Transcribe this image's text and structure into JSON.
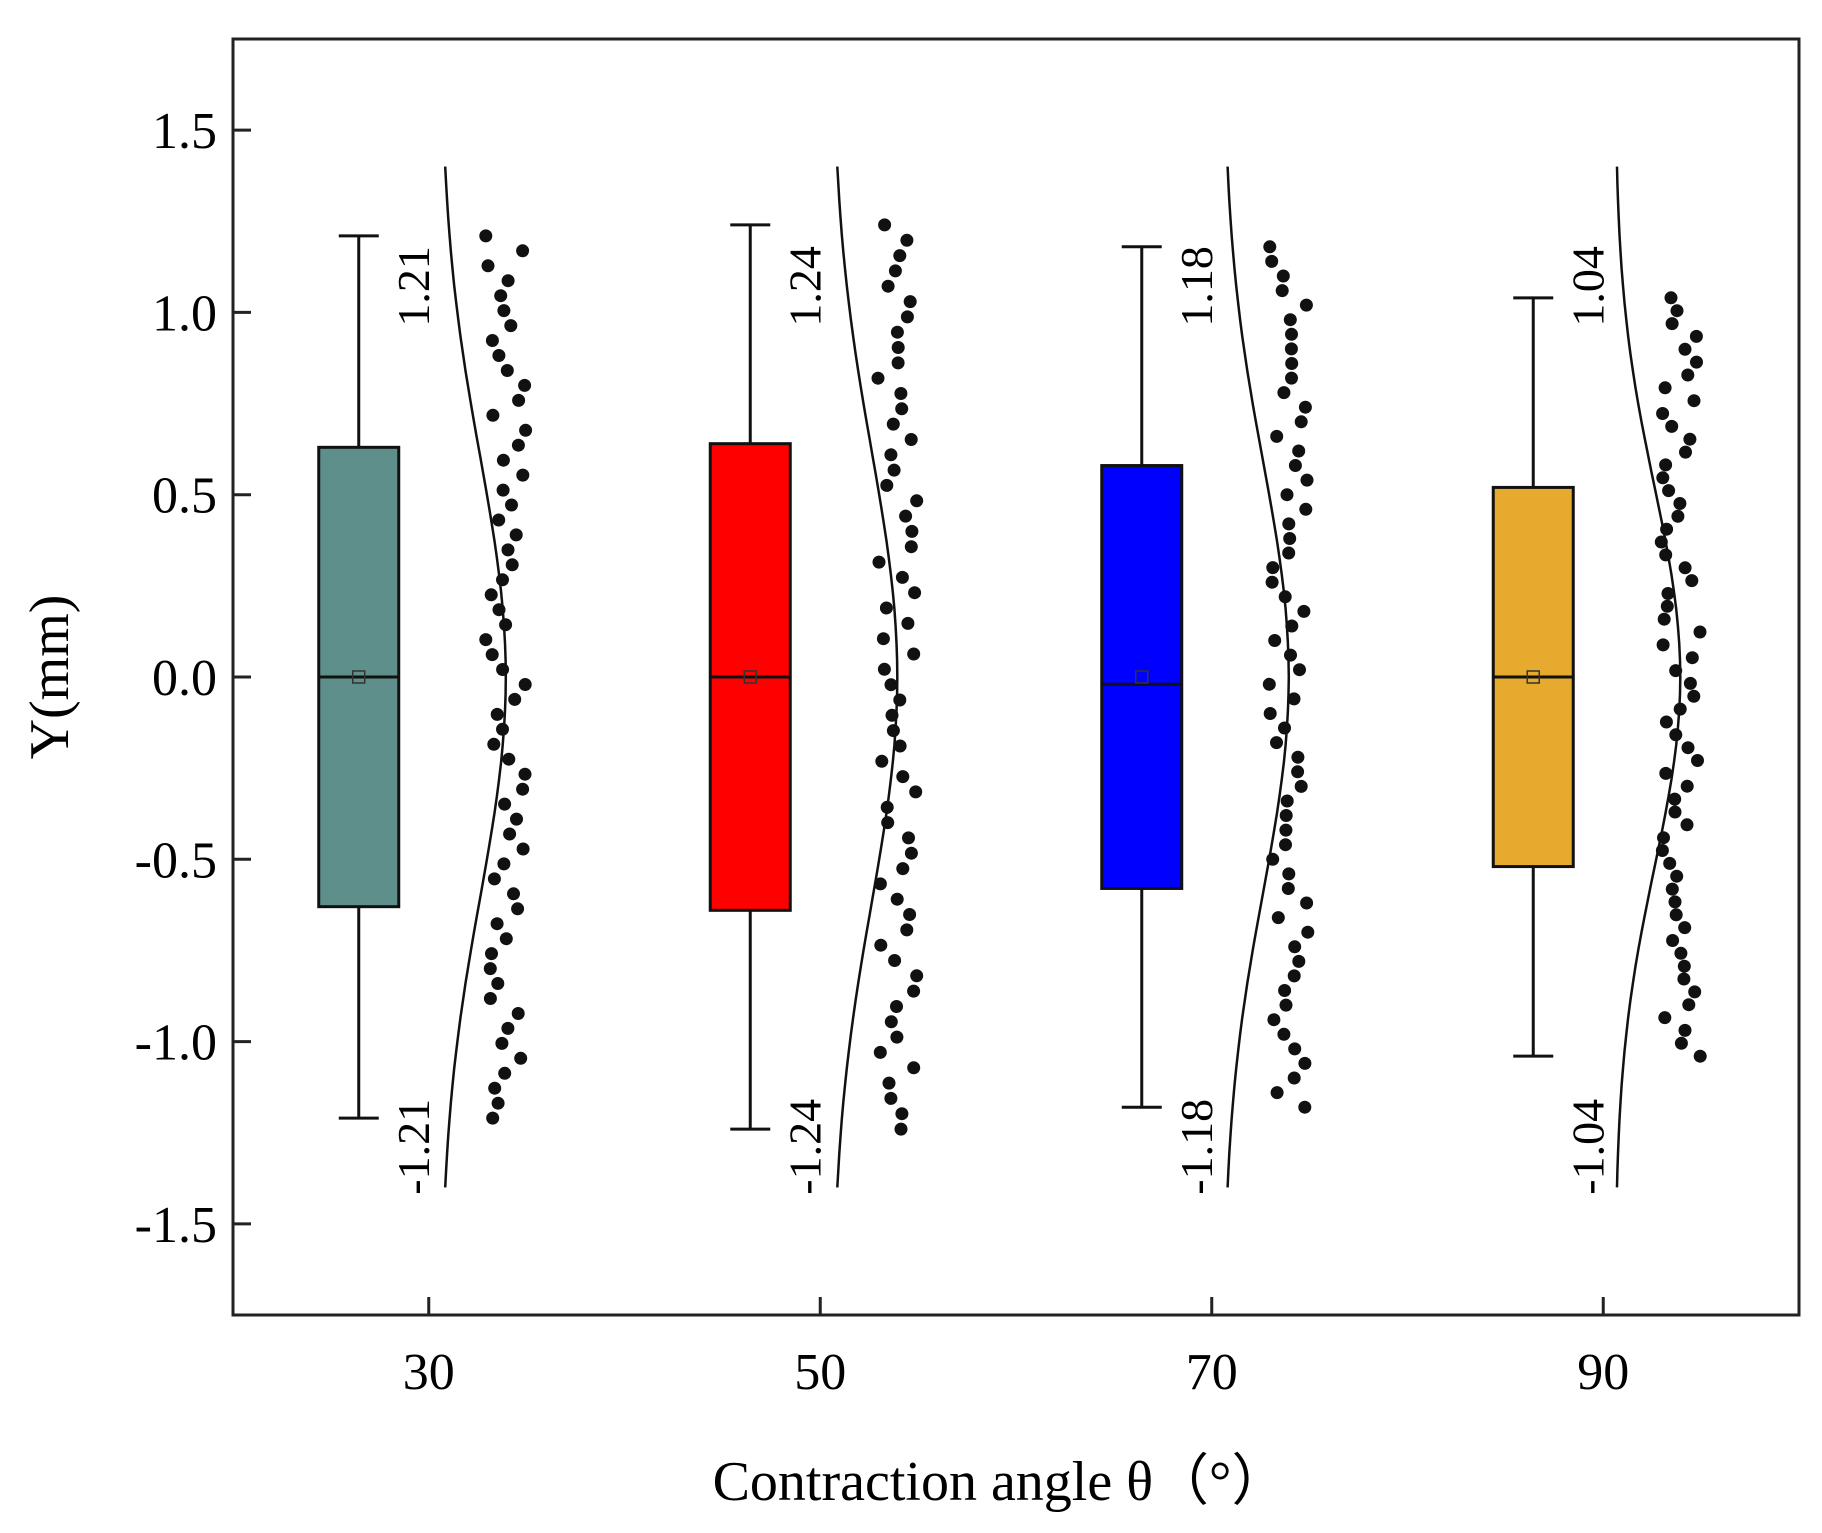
{
  "chart_data": {
    "type": "box",
    "title": "",
    "xlabel": "Contraction angle θ（°）",
    "ylabel": "Y(mm)",
    "xlim": [
      20,
      100
    ],
    "ylim": [
      -1.75,
      1.75
    ],
    "x_ticks": [
      30,
      50,
      70,
      90
    ],
    "x_tick_labels": [
      "30",
      "50",
      "70",
      "90"
    ],
    "y_ticks": [
      1.5,
      1.0,
      0.5,
      0.0,
      -0.5,
      -1.0,
      -1.5
    ],
    "y_tick_labels": [
      "1.5",
      "1.0",
      "0.5",
      "0.0",
      "-0.5",
      "-1.0",
      "-1.5"
    ],
    "grid": false,
    "series": [
      {
        "name": "30",
        "x": 30,
        "color": "#5f8f8b",
        "whisker_min": -1.21,
        "q1": -0.63,
        "median": 0.0,
        "mean": 0.0,
        "q3": 0.63,
        "whisker_max": 1.21,
        "label_max": "1.21",
        "label_min": "-1.21"
      },
      {
        "name": "50",
        "x": 50,
        "color": "#ff0000",
        "whisker_min": -1.24,
        "q1": -0.64,
        "median": 0.0,
        "mean": 0.0,
        "q3": 0.64,
        "whisker_max": 1.24,
        "label_max": "1.24",
        "label_min": "-1.24"
      },
      {
        "name": "70",
        "x": 70,
        "color": "#0000ff",
        "whisker_min": -1.18,
        "q1": -0.58,
        "median": -0.02,
        "mean": 0.0,
        "q3": 0.58,
        "whisker_max": 1.18,
        "label_max": "1.18",
        "label_min": "-1.18"
      },
      {
        "name": "90",
        "x": 90,
        "color": "#e6aa2e",
        "whisker_min": -1.04,
        "q1": -0.52,
        "median": 0.0,
        "mean": 0.0,
        "q3": 0.52,
        "whisker_max": 1.04,
        "label_max": "1.04",
        "label_min": "-1.04"
      }
    ]
  }
}
